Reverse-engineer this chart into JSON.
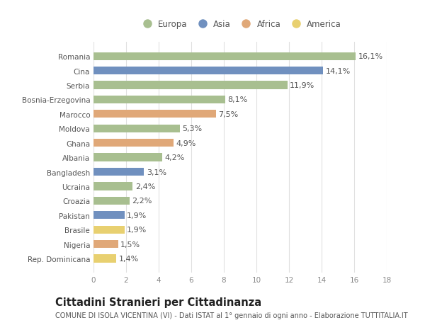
{
  "categories": [
    "Romania",
    "Cina",
    "Serbia",
    "Bosnia-Erzegovina",
    "Marocco",
    "Moldova",
    "Ghana",
    "Albania",
    "Bangladesh",
    "Ucraina",
    "Croazia",
    "Pakistan",
    "Brasile",
    "Nigeria",
    "Rep. Dominicana"
  ],
  "values": [
    16.1,
    14.1,
    11.9,
    8.1,
    7.5,
    5.3,
    4.9,
    4.2,
    3.1,
    2.4,
    2.2,
    1.9,
    1.9,
    1.5,
    1.4
  ],
  "continents": [
    "Europa",
    "Asia",
    "Europa",
    "Europa",
    "Africa",
    "Europa",
    "Africa",
    "Europa",
    "Asia",
    "Europa",
    "Europa",
    "Asia",
    "America",
    "Africa",
    "America"
  ],
  "continent_colors": {
    "Europa": "#a8bf90",
    "Asia": "#7090bf",
    "Africa": "#e0a878",
    "America": "#e8d070"
  },
  "legend_order": [
    "Europa",
    "Asia",
    "Africa",
    "America"
  ],
  "title": "Cittadini Stranieri per Cittadinanza",
  "subtitle": "COMUNE DI ISOLA VICENTINA (VI) - Dati ISTAT al 1° gennaio di ogni anno - Elaborazione TUTTITALIA.IT",
  "xlim": [
    0,
    18
  ],
  "xticks": [
    0,
    2,
    4,
    6,
    8,
    10,
    12,
    14,
    16,
    18
  ],
  "background_color": "#ffffff",
  "grid_color": "#e0e0e0",
  "bar_height": 0.55,
  "label_fontsize": 8,
  "title_fontsize": 10.5,
  "subtitle_fontsize": 7,
  "tick_fontsize": 7.5,
  "legend_fontsize": 8.5
}
